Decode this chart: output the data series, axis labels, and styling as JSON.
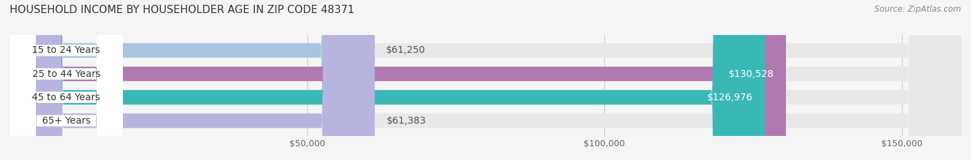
{
  "title": "HOUSEHOLD INCOME BY HOUSEHOLDER AGE IN ZIP CODE 48371",
  "source": "Source: ZipAtlas.com",
  "categories": [
    "15 to 24 Years",
    "25 to 44 Years",
    "45 to 64 Years",
    "65+ Years"
  ],
  "values": [
    61250,
    130528,
    126976,
    61383
  ],
  "bar_colors": [
    "#a8c4e0",
    "#b07ab0",
    "#3ab8b8",
    "#b8b4e0"
  ],
  "label_colors": [
    "#555555",
    "#ffffff",
    "#ffffff",
    "#555555"
  ],
  "value_labels": [
    "$61,250",
    "$130,528",
    "$126,976",
    "$61,383"
  ],
  "background_color": "#f5f5f5",
  "bar_bg_color": "#e8e8e8",
  "xlim": [
    0,
    160000
  ],
  "xticks": [
    50000,
    100000,
    150000
  ],
  "xtick_labels": [
    "$50,000",
    "$100,000",
    "$150,000"
  ],
  "title_fontsize": 11,
  "source_fontsize": 8.5,
  "bar_height": 0.62,
  "bar_label_fontsize": 10,
  "category_label_fontsize": 10
}
